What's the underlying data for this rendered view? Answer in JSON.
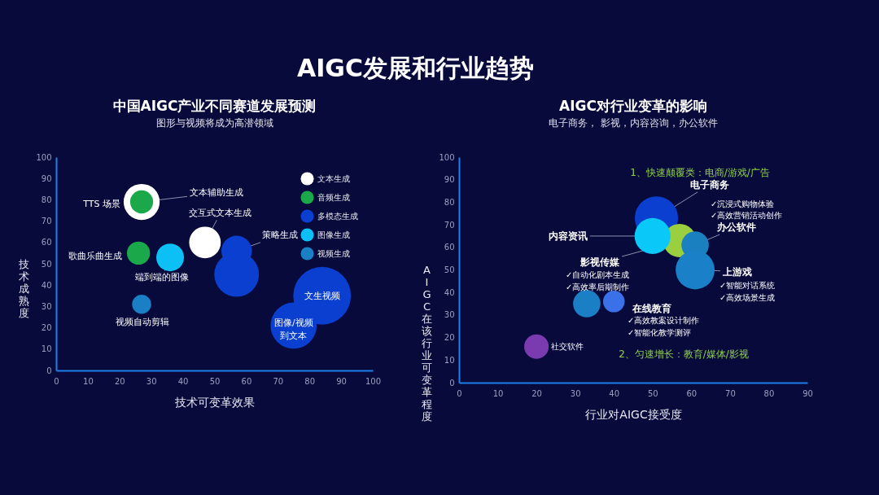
{
  "chart_data": [
    {
      "type": "bubble",
      "title": "中国AIGC产业不同赛道发展预测",
      "subtitle": "图形与视频将成为高潜领域",
      "xlabel": "技术可变革效果",
      "ylabel": "技术成熟度",
      "xlim": [
        0,
        100
      ],
      "ylim": [
        0,
        100
      ],
      "xticks": [
        0,
        10,
        20,
        30,
        40,
        50,
        60,
        70,
        80,
        90,
        100
      ],
      "yticks": [
        0,
        10,
        20,
        30,
        40,
        50,
        60,
        70,
        80,
        90,
        100
      ],
      "grid": false,
      "legend": "top right",
      "series": [
        {
          "name": "文本生成",
          "color": "#ffffff",
          "x": [
            27,
            47
          ],
          "values": [
            79,
            60
          ],
          "sizes": [
            0.39,
            0.3
          ]
        },
        {
          "name": "音频生成",
          "color": "#1aa84a",
          "x": [
            27,
            26
          ],
          "values": [
            79,
            55
          ],
          "sizes": [
            0.16,
            0.16
          ]
        },
        {
          "name": "多模态生成",
          "color": "#0a3fd0",
          "x": [
            57,
            57,
            84,
            75
          ],
          "values": [
            56,
            45,
            35,
            21
          ],
          "sizes": [
            0.28,
            0.6,
            1,
            0.64
          ]
        },
        {
          "name": "图像生成",
          "color": "#0cc0f5",
          "x": [
            36
          ],
          "values": [
            53
          ],
          "sizes": [
            0.23
          ]
        },
        {
          "name": "视频生成",
          "color": "#1a7fc4",
          "x": [
            27
          ],
          "values": [
            31
          ],
          "sizes": [
            0.11
          ]
        }
      ],
      "annotations": [
        "AIGC发展和行业趋势",
        {
          "text": "文本辅助生成",
          "x": 27,
          "y": 79
        },
        {
          "text": "TTS 场景",
          "x": 27,
          "y": 79
        },
        {
          "text": "交互式文本生成",
          "x": 47,
          "y": 60
        },
        {
          "text": "策略生成",
          "x": 57,
          "y": 56
        },
        {
          "text": "歌曲乐曲生成",
          "x": 26,
          "y": 55
        },
        {
          "text": "端到端的图像",
          "x": 36,
          "y": 53
        },
        {
          "text": "视频自动剪辑",
          "x": 27,
          "y": 31
        },
        {
          "text": "文生视频",
          "x": 84,
          "y": 35
        },
        {
          "text": "图像/视频到文本",
          "x": 75,
          "y": 21
        }
      ]
    },
    {
      "type": "bubble",
      "title": "AIGC对行业变革的影响",
      "subtitle": "电子商务， 影视，内容咨询，办公软件",
      "xlabel": "行业对AIGC接受度",
      "ylabel": "AIGC在该行业可变革程度",
      "xlim": [
        0,
        90
      ],
      "ylim": [
        0,
        100
      ],
      "xticks": [
        0,
        10,
        20,
        30,
        40,
        50,
        60,
        70,
        80,
        90
      ],
      "yticks": [
        0,
        10,
        20,
        30,
        40,
        50,
        60,
        70,
        80,
        90,
        100
      ],
      "grid": false,
      "legend": false,
      "series": [
        {
          "x": [
            51,
            57,
            61,
            61,
            50,
            33,
            40,
            20
          ],
          "values": [
            73,
            63,
            61,
            50,
            65,
            35,
            36,
            16
          ],
          "sizes": [
            1,
            0.59,
            0.4,
            0.81,
            0.69,
            0.4,
            0.25,
            0.32
          ],
          "colors": [
            "#0a3fd0",
            "#9ad040",
            "#1a80c0",
            "#1a80c8",
            "#0ac8f8",
            "#1a7fc4",
            "#3a70e8",
            "#7a3ab0"
          ]
        }
      ],
      "annotations": [
        "1、快速颠覆类：电商/游戏/广告",
        "2、匀速增长：教育/媒体/影视",
        {
          "text": "电子商务",
          "x": 51,
          "y": 73
        },
        "✓沉浸式购物体验",
        "✓高效营销活动创作",
        {
          "text": "内容资讯",
          "x": 50,
          "y": 65
        },
        {
          "text": "影视传媒",
          "x": 57,
          "y": 63
        },
        "✓自动化剧本生成",
        "✓高效率后期制作",
        {
          "text": "办公软件",
          "x": 61,
          "y": 61
        },
        {
          "text": "上游戏",
          "x": 61,
          "y": 50
        },
        "✓智能对话系统",
        "✓高效场景生成",
        {
          "text": "在线教育",
          "x": 40,
          "y": 36
        },
        "✓高效教案设计制作",
        "✓智能化教学测评",
        {
          "text": "社交软件",
          "x": 20,
          "y": 16
        }
      ]
    }
  ]
}
